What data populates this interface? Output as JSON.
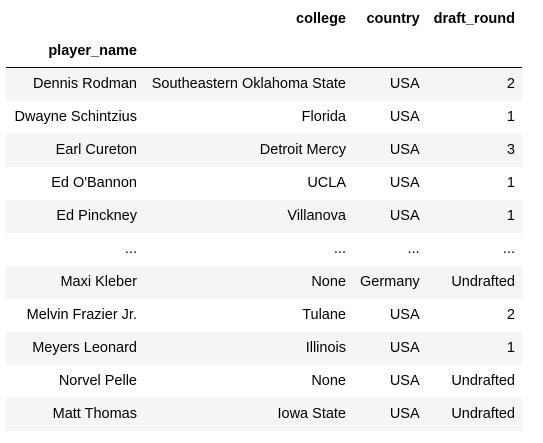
{
  "table": {
    "index_name": "player_name",
    "columns": [
      "college",
      "country",
      "draft_round"
    ],
    "rows": [
      {
        "index": "Dennis Rodman",
        "values": [
          "Southeastern Oklahoma State",
          "USA",
          "2"
        ]
      },
      {
        "index": "Dwayne Schintzius",
        "values": [
          "Florida",
          "USA",
          "1"
        ]
      },
      {
        "index": "Earl Cureton",
        "values": [
          "Detroit Mercy",
          "USA",
          "3"
        ]
      },
      {
        "index": "Ed O'Bannon",
        "values": [
          "UCLA",
          "USA",
          "1"
        ]
      },
      {
        "index": "Ed Pinckney",
        "values": [
          "Villanova",
          "USA",
          "1"
        ]
      },
      {
        "index": "...",
        "values": [
          "...",
          "...",
          "..."
        ]
      },
      {
        "index": "Maxi Kleber",
        "values": [
          "None",
          "Germany",
          "Undrafted"
        ]
      },
      {
        "index": "Melvin Frazier Jr.",
        "values": [
          "Tulane",
          "USA",
          "2"
        ]
      },
      {
        "index": "Meyers Leonard",
        "values": [
          "Illinois",
          "USA",
          "1"
        ]
      },
      {
        "index": "Norvel Pelle",
        "values": [
          "None",
          "USA",
          "Undrafted"
        ]
      },
      {
        "index": "Matt Thomas",
        "values": [
          "Iowa State",
          "USA",
          "Undrafted"
        ]
      }
    ]
  }
}
